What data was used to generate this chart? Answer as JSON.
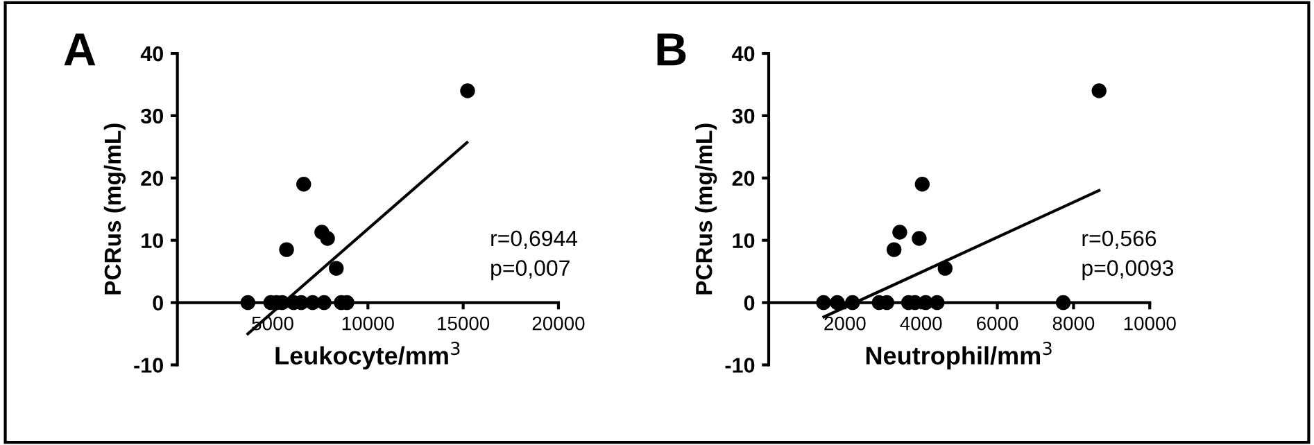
{
  "chart_data": [
    {
      "type": "scatter",
      "title": "A",
      "xlabel": "Leukocyte/mm$^{3}$",
      "ylabel": "PCRus (mg/mL)",
      "xlim": [
        0,
        20000
      ],
      "ylim": [
        -10,
        40
      ],
      "xticks": [
        5000,
        10000,
        15000,
        20000
      ],
      "yticks": [
        -10,
        0,
        10,
        20,
        30,
        40
      ],
      "annotations": [
        "r=0,6944",
        "p=0,007"
      ],
      "series": [
        {
          "marker": "circle",
          "color": "#000000",
          "x": [
            3700,
            4900,
            5200,
            5500,
            6100,
            6500,
            7100,
            7700,
            8600,
            8900,
            5730,
            6630,
            7580,
            7880,
            8340,
            15230
          ],
          "values": [
            0,
            0,
            0,
            0,
            0,
            0,
            0,
            0,
            0,
            0,
            8.5,
            19,
            11.3,
            10.3,
            5.5,
            34
          ]
        },
        {
          "type": "line",
          "color": "#000000",
          "x": [
            3700,
            15200
          ],
          "values": [
            -5,
            25.7
          ]
        }
      ]
    },
    {
      "type": "scatter",
      "title": "B",
      "xlabel": "Neutrophil/mm$^{3}$",
      "ylabel": "PCRus (mg/mL)",
      "xlim": [
        0,
        10000
      ],
      "ylim": [
        -10,
        40
      ],
      "xticks": [
        2000,
        4000,
        6000,
        8000,
        10000
      ],
      "yticks": [
        -10,
        0,
        10,
        20,
        30,
        40
      ],
      "annotations": [
        "r=0,566",
        "p=0,0093"
      ],
      "series": [
        {
          "marker": "circle",
          "color": "#000000",
          "x": [
            1440,
            1800,
            2200,
            2900,
            3100,
            3670,
            3840,
            4120,
            4420,
            7730,
            3290,
            3440,
            3950,
            4030,
            4630,
            8670
          ],
          "values": [
            0,
            0,
            0,
            0,
            0,
            0,
            0,
            0,
            0,
            0,
            8.5,
            11.3,
            10.3,
            19,
            5.5,
            34
          ]
        },
        {
          "type": "line",
          "color": "#000000",
          "x": [
            1450,
            8670
          ],
          "values": [
            -2.3,
            18
          ]
        }
      ]
    }
  ]
}
